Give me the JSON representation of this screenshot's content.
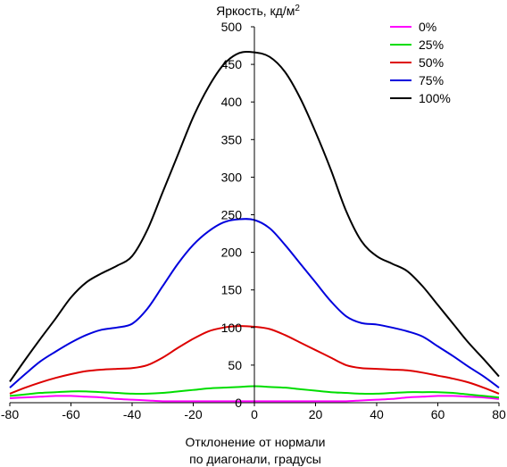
{
  "chart_data": {
    "type": "line",
    "title": "",
    "ylabel": "Яркость, кд/м",
    "ylabel_superscript": "2",
    "xlabel_line1": "Отклонение от нормали",
    "xlabel_line2": "по диагонали, градусы",
    "xlim": [
      -80,
      80
    ],
    "ylim": [
      0,
      500
    ],
    "xticks": [
      -80,
      -60,
      -40,
      -20,
      0,
      20,
      40,
      60,
      80
    ],
    "yticks": [
      0,
      50,
      100,
      150,
      200,
      250,
      300,
      350,
      400,
      450,
      500
    ],
    "grid": false,
    "legend_position": "top-right",
    "x": [
      -80,
      -75,
      -70,
      -65,
      -60,
      -55,
      -50,
      -45,
      -40,
      -35,
      -30,
      -25,
      -20,
      -15,
      -10,
      -5,
      0,
      5,
      10,
      15,
      20,
      25,
      30,
      35,
      40,
      45,
      50,
      55,
      60,
      65,
      70,
      75,
      80
    ],
    "series": [
      {
        "name": "0%",
        "color": "#ff00ff",
        "values": [
          6,
          7,
          8,
          9,
          9,
          8,
          7,
          5,
          4,
          3,
          2,
          2,
          2,
          2,
          2,
          2,
          2,
          2,
          2,
          2,
          2,
          2,
          2,
          3,
          4,
          5,
          7,
          8,
          9,
          9,
          8,
          7,
          5
        ]
      },
      {
        "name": "25%",
        "color": "#00dd00",
        "values": [
          9,
          11,
          13,
          14,
          15,
          15,
          14,
          13,
          12,
          12,
          13,
          15,
          17,
          19,
          20,
          21,
          22,
          21,
          20,
          18,
          16,
          14,
          13,
          12,
          12,
          13,
          14,
          14,
          14,
          13,
          11,
          9,
          7
        ]
      },
      {
        "name": "50%",
        "color": "#dd0000",
        "values": [
          12,
          20,
          27,
          33,
          38,
          42,
          44,
          45,
          46,
          50,
          60,
          73,
          85,
          95,
          100,
          102,
          101,
          98,
          90,
          80,
          70,
          60,
          50,
          46,
          45,
          44,
          43,
          40,
          36,
          32,
          27,
          20,
          12
        ]
      },
      {
        "name": "75%",
        "color": "#0000dd",
        "values": [
          20,
          38,
          55,
          68,
          80,
          90,
          97,
          100,
          105,
          125,
          155,
          185,
          210,
          228,
          240,
          244,
          243,
          232,
          210,
          185,
          160,
          135,
          115,
          106,
          104,
          100,
          95,
          88,
          75,
          62,
          48,
          35,
          20
        ]
      },
      {
        "name": "100%",
        "color": "#000000",
        "values": [
          28,
          57,
          85,
          112,
          140,
          160,
          172,
          182,
          195,
          230,
          280,
          330,
          380,
          420,
          450,
          465,
          466,
          460,
          440,
          405,
          360,
          310,
          255,
          215,
          195,
          185,
          175,
          155,
          130,
          105,
          80,
          58,
          35
        ]
      }
    ]
  }
}
